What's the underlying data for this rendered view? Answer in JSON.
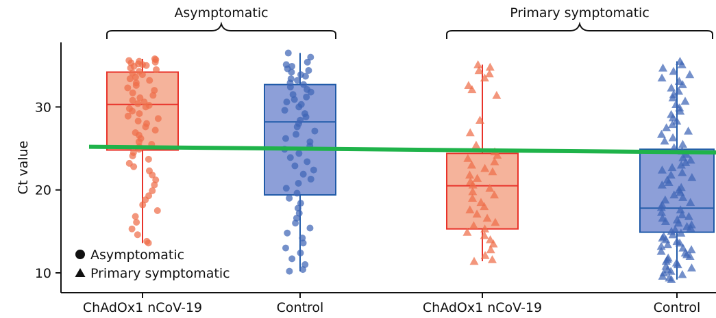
{
  "chart_data": {
    "type": "box",
    "ylabel": "Ct value",
    "ylim": [
      8.5,
      37.5
    ],
    "yticks": [
      10,
      20,
      30
    ],
    "categories": [
      "ChAdOx1 nCoV-19",
      "Control",
      "ChAdOx1 nCoV-19",
      "Control"
    ],
    "groups": [
      {
        "label": "Asymptomatic",
        "categories": [
          0,
          1
        ]
      },
      {
        "label": "Primary symptomatic",
        "categories": [
          2,
          3
        ]
      }
    ],
    "legend": {
      "position": "bottom-left",
      "entries": [
        {
          "marker": "circle",
          "label": "Asymptomatic"
        },
        {
          "marker": "triangle",
          "label": "Primary symptomatic"
        }
      ]
    },
    "colors": {
      "vaccine_fill": "#f5b39b",
      "vaccine_edge": "#e8332a",
      "vaccine_point": "#ef6e4a",
      "control_fill": "#8d9fd8",
      "control_edge": "#1f5aa8",
      "control_point": "#3e65b5",
      "trend_line": "#1fb34a"
    },
    "trend_line": {
      "x": [
        -0.3,
        3.3
      ],
      "y": [
        25.2,
        24.5
      ]
    },
    "boxes": [
      {
        "category": "ChAdOx1 nCoV-19",
        "group": "Asymptomatic",
        "marker": "circle",
        "arm": "vaccine",
        "whisker_low": 13.6,
        "q1": 24.8,
        "median": 30.3,
        "q3": 34.2,
        "whisker_high": 35.8,
        "points": [
          35.8,
          35.7,
          35.6,
          35.5,
          35.4,
          35.3,
          35.2,
          35.1,
          35.0,
          34.9,
          34.7,
          34.5,
          34.3,
          34.1,
          33.9,
          33.6,
          33.4,
          33.2,
          32.9,
          32.6,
          32.3,
          32.0,
          31.7,
          31.4,
          31.1,
          30.8,
          30.6,
          30.4,
          30.2,
          30.0,
          29.8,
          29.5,
          29.2,
          28.9,
          28.6,
          28.3,
          28.0,
          27.6,
          27.2,
          26.9,
          26.6,
          26.2,
          25.8,
          25.5,
          25.2,
          24.9,
          24.5,
          24.1,
          23.7,
          23.2,
          22.8,
          22.3,
          21.8,
          21.2,
          20.6,
          19.9,
          19.3,
          18.8,
          18.2,
          17.5,
          16.8,
          16.1,
          15.3,
          14.6,
          13.8,
          13.6
        ]
      },
      {
        "category": "Control",
        "group": "Asymptomatic",
        "marker": "circle",
        "arm": "control",
        "whisker_low": 10.2,
        "q1": 19.4,
        "median": 28.2,
        "q3": 32.7,
        "whisker_high": 36.5,
        "points": [
          36.5,
          36.0,
          35.4,
          35.1,
          34.9,
          34.6,
          34.4,
          34.2,
          33.9,
          33.7,
          33.4,
          33.2,
          32.9,
          32.7,
          32.4,
          32.1,
          31.8,
          31.5,
          31.2,
          30.9,
          30.6,
          30.3,
          30.0,
          29.6,
          29.2,
          28.8,
          28.4,
          28.0,
          27.6,
          27.1,
          26.7,
          26.2,
          25.8,
          25.3,
          24.9,
          24.4,
          23.9,
          23.4,
          22.9,
          22.4,
          21.9,
          21.3,
          20.8,
          20.2,
          19.6,
          19.0,
          18.4,
          17.8,
          17.2,
          16.6,
          16.0,
          15.4,
          14.8,
          14.2,
          13.6,
          13.0,
          12.4,
          11.7,
          11.0,
          10.4,
          10.2
        ]
      },
      {
        "category": "ChAdOx1 nCoV-19",
        "group": "Primary symptomatic",
        "marker": "triangle",
        "arm": "vaccine",
        "whisker_low": 11.4,
        "q1": 15.3,
        "median": 20.5,
        "q3": 24.4,
        "whisker_high": 35.1,
        "points": [
          35.1,
          34.8,
          34.4,
          34.0,
          33.5,
          32.6,
          32.1,
          31.4,
          28.4,
          26.9,
          25.4,
          24.6,
          24.2,
          23.8,
          23.4,
          23.0,
          22.6,
          22.2,
          21.8,
          21.4,
          21.0,
          20.6,
          20.2,
          19.8,
          19.4,
          19.0,
          18.5,
          18.0,
          17.6,
          17.1,
          16.6,
          16.1,
          15.7,
          15.3,
          14.9,
          14.5,
          14.0,
          13.5,
          12.8,
          12.1,
          11.6,
          11.4
        ]
      },
      {
        "category": "Control",
        "group": "Primary symptomatic",
        "marker": "triangle",
        "arm": "control",
        "whisker_low": 9.2,
        "q1": 14.9,
        "median": 17.8,
        "q3": 24.9,
        "whisker_high": 35.5,
        "points": [
          35.5,
          35.1,
          34.7,
          34.3,
          33.9,
          33.5,
          33.1,
          32.7,
          32.3,
          31.9,
          31.5,
          31.1,
          30.7,
          30.3,
          29.9,
          29.5,
          29.1,
          28.7,
          28.3,
          27.9,
          27.5,
          27.1,
          26.7,
          26.3,
          25.9,
          25.5,
          25.1,
          24.7,
          24.3,
          23.9,
          23.6,
          23.3,
          23.0,
          22.7,
          22.4,
          22.1,
          21.8,
          21.5,
          21.2,
          20.9,
          20.6,
          20.3,
          20.0,
          19.7,
          19.4,
          19.1,
          18.8,
          18.5,
          18.2,
          17.9,
          17.6,
          17.3,
          17.0,
          16.8,
          16.6,
          16.4,
          16.2,
          16.0,
          15.8,
          15.6,
          15.4,
          15.2,
          15.0,
          14.8,
          14.6,
          14.4,
          14.2,
          14.0,
          13.8,
          13.6,
          13.4,
          13.2,
          13.0,
          12.8,
          12.6,
          12.4,
          12.2,
          12.0,
          11.8,
          11.6,
          11.4,
          11.2,
          11.0,
          10.8,
          10.6,
          10.4,
          10.2,
          10.0,
          9.8,
          9.6,
          9.4,
          9.2
        ]
      }
    ]
  }
}
